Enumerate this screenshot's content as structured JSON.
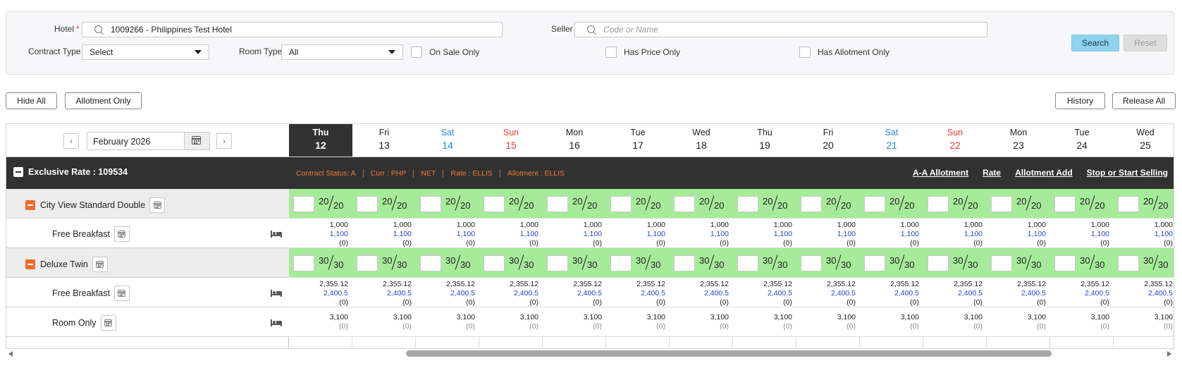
{
  "filters": {
    "hotel_label": "Hotel",
    "hotel_required": "*",
    "hotel_value": "1009266 - Philippines Test Hotel",
    "seller_label": "Seller",
    "seller_placeholder": "Code or Name",
    "contract_type_label": "Contract Type",
    "contract_type_value": "Select",
    "room_type_label": "Room Type",
    "room_type_value": "All",
    "on_sale_only": "On Sale Only",
    "has_price_only": "Has Price Only",
    "has_allotment_only": "Has Allotment Only",
    "search_label": "Search",
    "reset_label": "Reset"
  },
  "toolbar": {
    "hide_all": "Hide All",
    "allotment_only": "Allotment Only",
    "history": "History",
    "release_all": "Release All"
  },
  "calendar": {
    "month": "February 2026",
    "prev": "‹",
    "next": "›",
    "days": [
      {
        "name": "Thu",
        "num": "12",
        "kind": "today"
      },
      {
        "name": "Fri",
        "num": "13",
        "kind": "normal"
      },
      {
        "name": "Sat",
        "num": "14",
        "kind": "sat"
      },
      {
        "name": "Sun",
        "num": "15",
        "kind": "sun"
      },
      {
        "name": "Mon",
        "num": "16",
        "kind": "normal"
      },
      {
        "name": "Tue",
        "num": "17",
        "kind": "normal"
      },
      {
        "name": "Wed",
        "num": "18",
        "kind": "normal"
      },
      {
        "name": "Thu",
        "num": "19",
        "kind": "normal"
      },
      {
        "name": "Fri",
        "num": "20",
        "kind": "normal"
      },
      {
        "name": "Sat",
        "num": "21",
        "kind": "sat"
      },
      {
        "name": "Sun",
        "num": "22",
        "kind": "sun"
      },
      {
        "name": "Mon",
        "num": "23",
        "kind": "normal"
      },
      {
        "name": "Tue",
        "num": "24",
        "kind": "normal"
      },
      {
        "name": "Wed",
        "num": "25",
        "kind": "normal"
      }
    ]
  },
  "contract": {
    "title": "Exclusive Rate : 109534",
    "info": [
      "Contract Status: A",
      "Curr : PHP",
      "NET",
      "Rate : ELLIS",
      "Allotment : ELLIS"
    ],
    "links": [
      "A-A Allotment",
      "Rate",
      "Allotment Add",
      "Stop or Start Selling"
    ]
  },
  "rows": [
    {
      "type": "room",
      "label": "City View Standard Double",
      "avail": "20",
      "total": "20"
    },
    {
      "type": "rate",
      "label": "Free Breakfast",
      "lines": [
        "1,000",
        "1,100",
        "(0)"
      ]
    },
    {
      "type": "room",
      "label": "Deluxe Twin",
      "avail": "30",
      "total": "30"
    },
    {
      "type": "rate",
      "label": "Free Breakfast",
      "lines": [
        "2,355.12",
        "2,400.5",
        "(0)"
      ]
    },
    {
      "type": "rate",
      "label": "Room Only",
      "lines": [
        "3,100",
        "(0)"
      ]
    }
  ],
  "colors": {
    "allotment_bg": "#a6eb9a",
    "contract_bar": "#313131",
    "contract_info": "#f07a3a",
    "saturday": "#1e88e5",
    "sunday": "#e53935",
    "sell_price": "#2b3fd1"
  }
}
